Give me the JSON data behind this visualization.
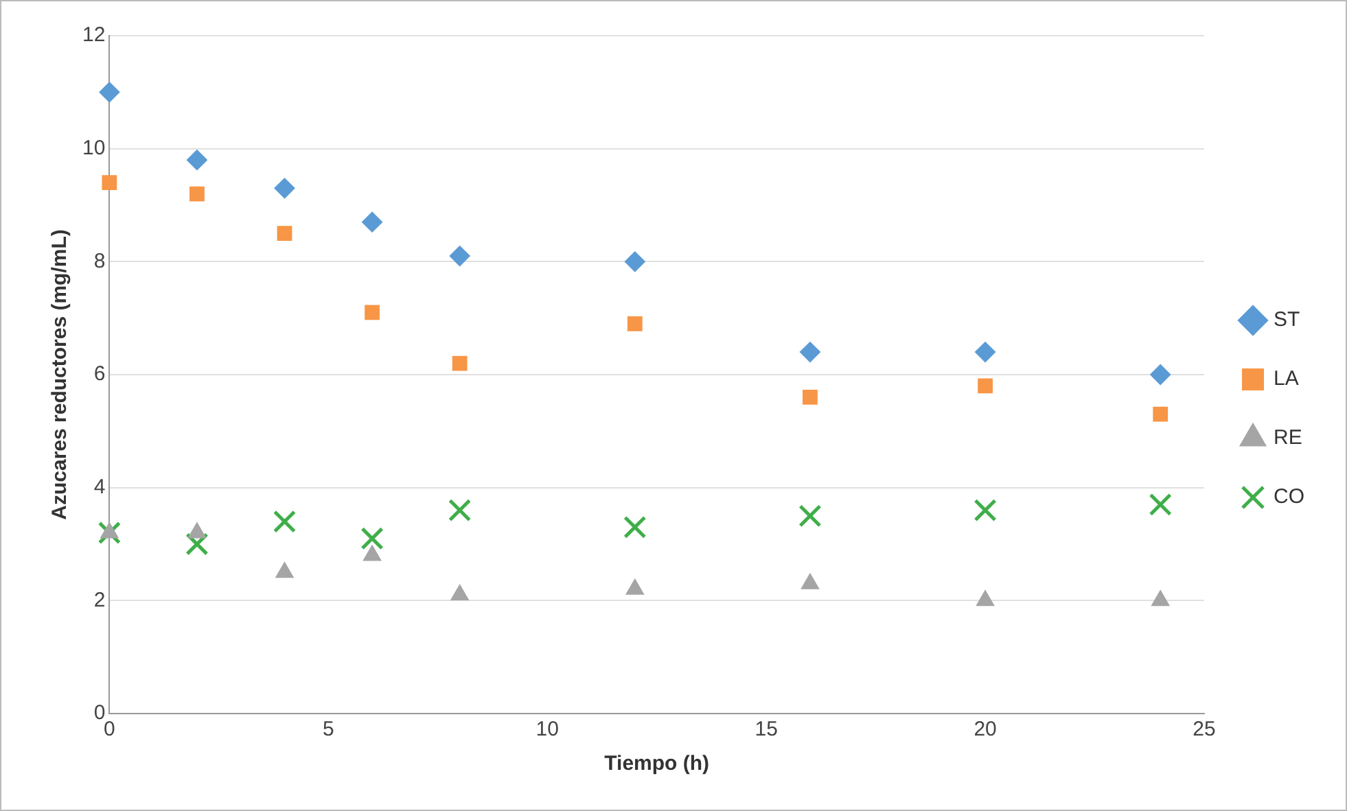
{
  "chart_data": {
    "type": "scatter",
    "xlabel": "Tiempo (h)",
    "ylabel": "Azucares reductores (mg/mL)",
    "xlim": [
      0,
      25
    ],
    "xticks": [
      0,
      5,
      10,
      15,
      20,
      25
    ],
    "ylim": [
      0,
      12
    ],
    "yticks": [
      0,
      2,
      4,
      6,
      8,
      10,
      12
    ],
    "grid": "y",
    "legend": "right",
    "x": [
      0,
      2,
      4,
      6,
      8,
      12,
      16,
      20,
      24
    ],
    "series": [
      {
        "name": "ST",
        "color": "#5b9bd5",
        "marker": "diamond",
        "values": [
          11.0,
          9.8,
          9.3,
          8.7,
          8.1,
          8.0,
          6.4,
          6.4,
          6.0
        ]
      },
      {
        "name": "LA",
        "color": "#f79646",
        "marker": "square",
        "values": [
          9.4,
          9.2,
          8.5,
          7.1,
          6.2,
          6.9,
          5.6,
          5.8,
          5.3
        ]
      },
      {
        "name": "RE",
        "color": "#a5a5a5",
        "marker": "triangle",
        "values": [
          3.2,
          3.2,
          2.5,
          2.8,
          2.1,
          2.2,
          2.3,
          2.0,
          2.0
        ]
      },
      {
        "name": "CO",
        "color": "#3fae49",
        "marker": "cross",
        "values": [
          3.2,
          3.0,
          3.4,
          3.1,
          3.6,
          3.3,
          3.5,
          3.6,
          3.7
        ]
      }
    ]
  }
}
